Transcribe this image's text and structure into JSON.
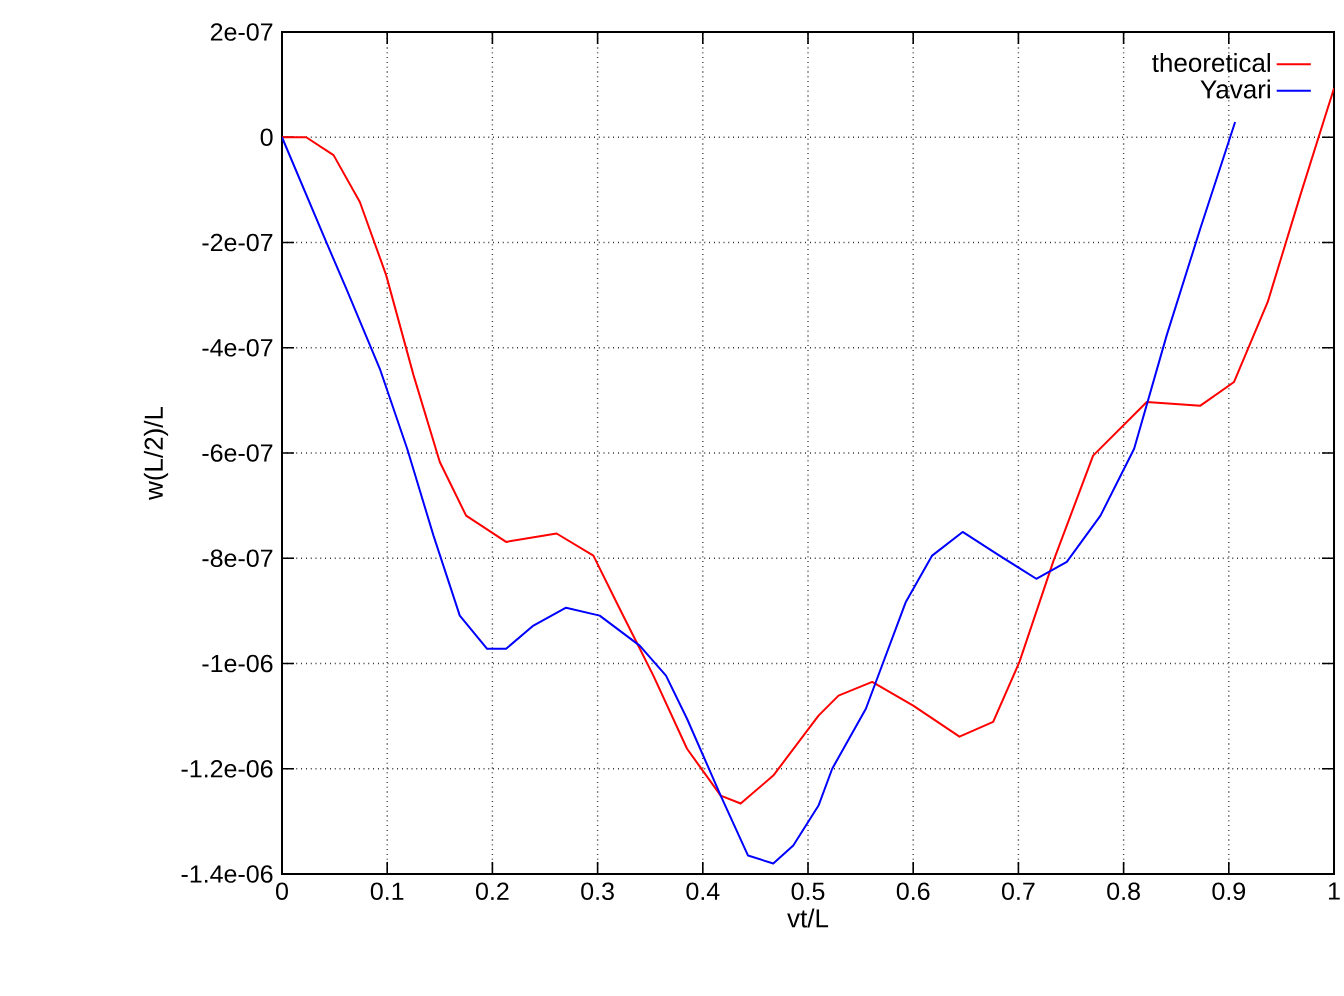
{
  "chart_data": {
    "type": "line",
    "xlabel": "vt/L",
    "ylabel": "w(L/2)/L",
    "xlim": [
      0,
      1
    ],
    "ylim": [
      -1.4e-06,
      2e-07
    ],
    "xticks": [
      0,
      0.1,
      0.2,
      0.3,
      0.4,
      0.5,
      0.6,
      0.7,
      0.8,
      0.9,
      1
    ],
    "yticks": [
      {
        "value": -1.4e-06,
        "label": "-1.4e-06"
      },
      {
        "value": -1.2e-06,
        "label": "-1.2e-06"
      },
      {
        "value": -1e-06,
        "label": "-1e-06"
      },
      {
        "value": -8e-07,
        "label": "-8e-07"
      },
      {
        "value": -6e-07,
        "label": "-6e-07"
      },
      {
        "value": -4e-07,
        "label": "-4e-07"
      },
      {
        "value": -2e-07,
        "label": "-2e-07"
      },
      {
        "value": 0,
        "label": "0"
      },
      {
        "value": 2e-07,
        "label": "2e-07"
      }
    ],
    "grid": true,
    "legend": "top right",
    "marker": "none",
    "line_style": "solid",
    "series": [
      {
        "name": "theoretical",
        "color": "#ff0000",
        "x": [
          0,
          0.023,
          0.049,
          0.074,
          0.099,
          0.125,
          0.15,
          0.175,
          0.213,
          0.261,
          0.296,
          0.321,
          0.353,
          0.385,
          0.417,
          0.436,
          0.467,
          0.51,
          0.529,
          0.561,
          0.6,
          0.644,
          0.676,
          0.701,
          0.733,
          0.771,
          0.822,
          0.873,
          0.905,
          0.937,
          0.968,
          1
        ],
        "values": [
          0,
          0,
          -3.4e-08,
          -1.23e-07,
          -2.62e-07,
          -4.52e-07,
          -6.17e-07,
          -7.19e-07,
          -7.69e-07,
          -7.53e-07,
          -7.95e-07,
          -8.96e-07,
          -1.023e-06,
          -1.162e-06,
          -1.251e-06,
          -1.266e-06,
          -1.213e-06,
          -1.099e-06,
          -1.061e-06,
          -1.035e-06,
          -1.08e-06,
          -1.139e-06,
          -1.111e-06,
          -9.97e-07,
          -8.07e-07,
          -6.05e-07,
          -5.03e-07,
          -5.1e-07,
          -4.65e-07,
          -3.13e-07,
          -1.1e-07,
          9.3e-08
        ]
      },
      {
        "name": "Yavari",
        "color": "#0000ff",
        "x": [
          0,
          0.042,
          0.061,
          0.093,
          0.119,
          0.144,
          0.169,
          0.195,
          0.213,
          0.239,
          0.27,
          0.302,
          0.34,
          0.365,
          0.385,
          0.417,
          0.443,
          0.467,
          0.486,
          0.51,
          0.523,
          0.555,
          0.593,
          0.618,
          0.647,
          0.682,
          0.717,
          0.746,
          0.778,
          0.81,
          0.841,
          0.873,
          0.906
        ],
        "values": [
          0,
          -1.99e-07,
          -2.87e-07,
          -4.4e-07,
          -5.92e-07,
          -7.57e-07,
          -9.09e-07,
          -9.72e-07,
          -9.72e-07,
          -9.28e-07,
          -8.94e-07,
          -9.09e-07,
          -9.66e-07,
          -1.023e-06,
          -1.105e-06,
          -1.251e-06,
          -1.365e-06,
          -1.38e-06,
          -1.346e-06,
          -1.27e-06,
          -1.2e-06,
          -1.086e-06,
          -8.83e-07,
          -7.95e-07,
          -7.5e-07,
          -7.95e-07,
          -8.39e-07,
          -8.07e-07,
          -7.19e-07,
          -5.92e-07,
          -3.76e-07,
          -1.73e-07,
          2.9e-08
        ]
      }
    ]
  }
}
